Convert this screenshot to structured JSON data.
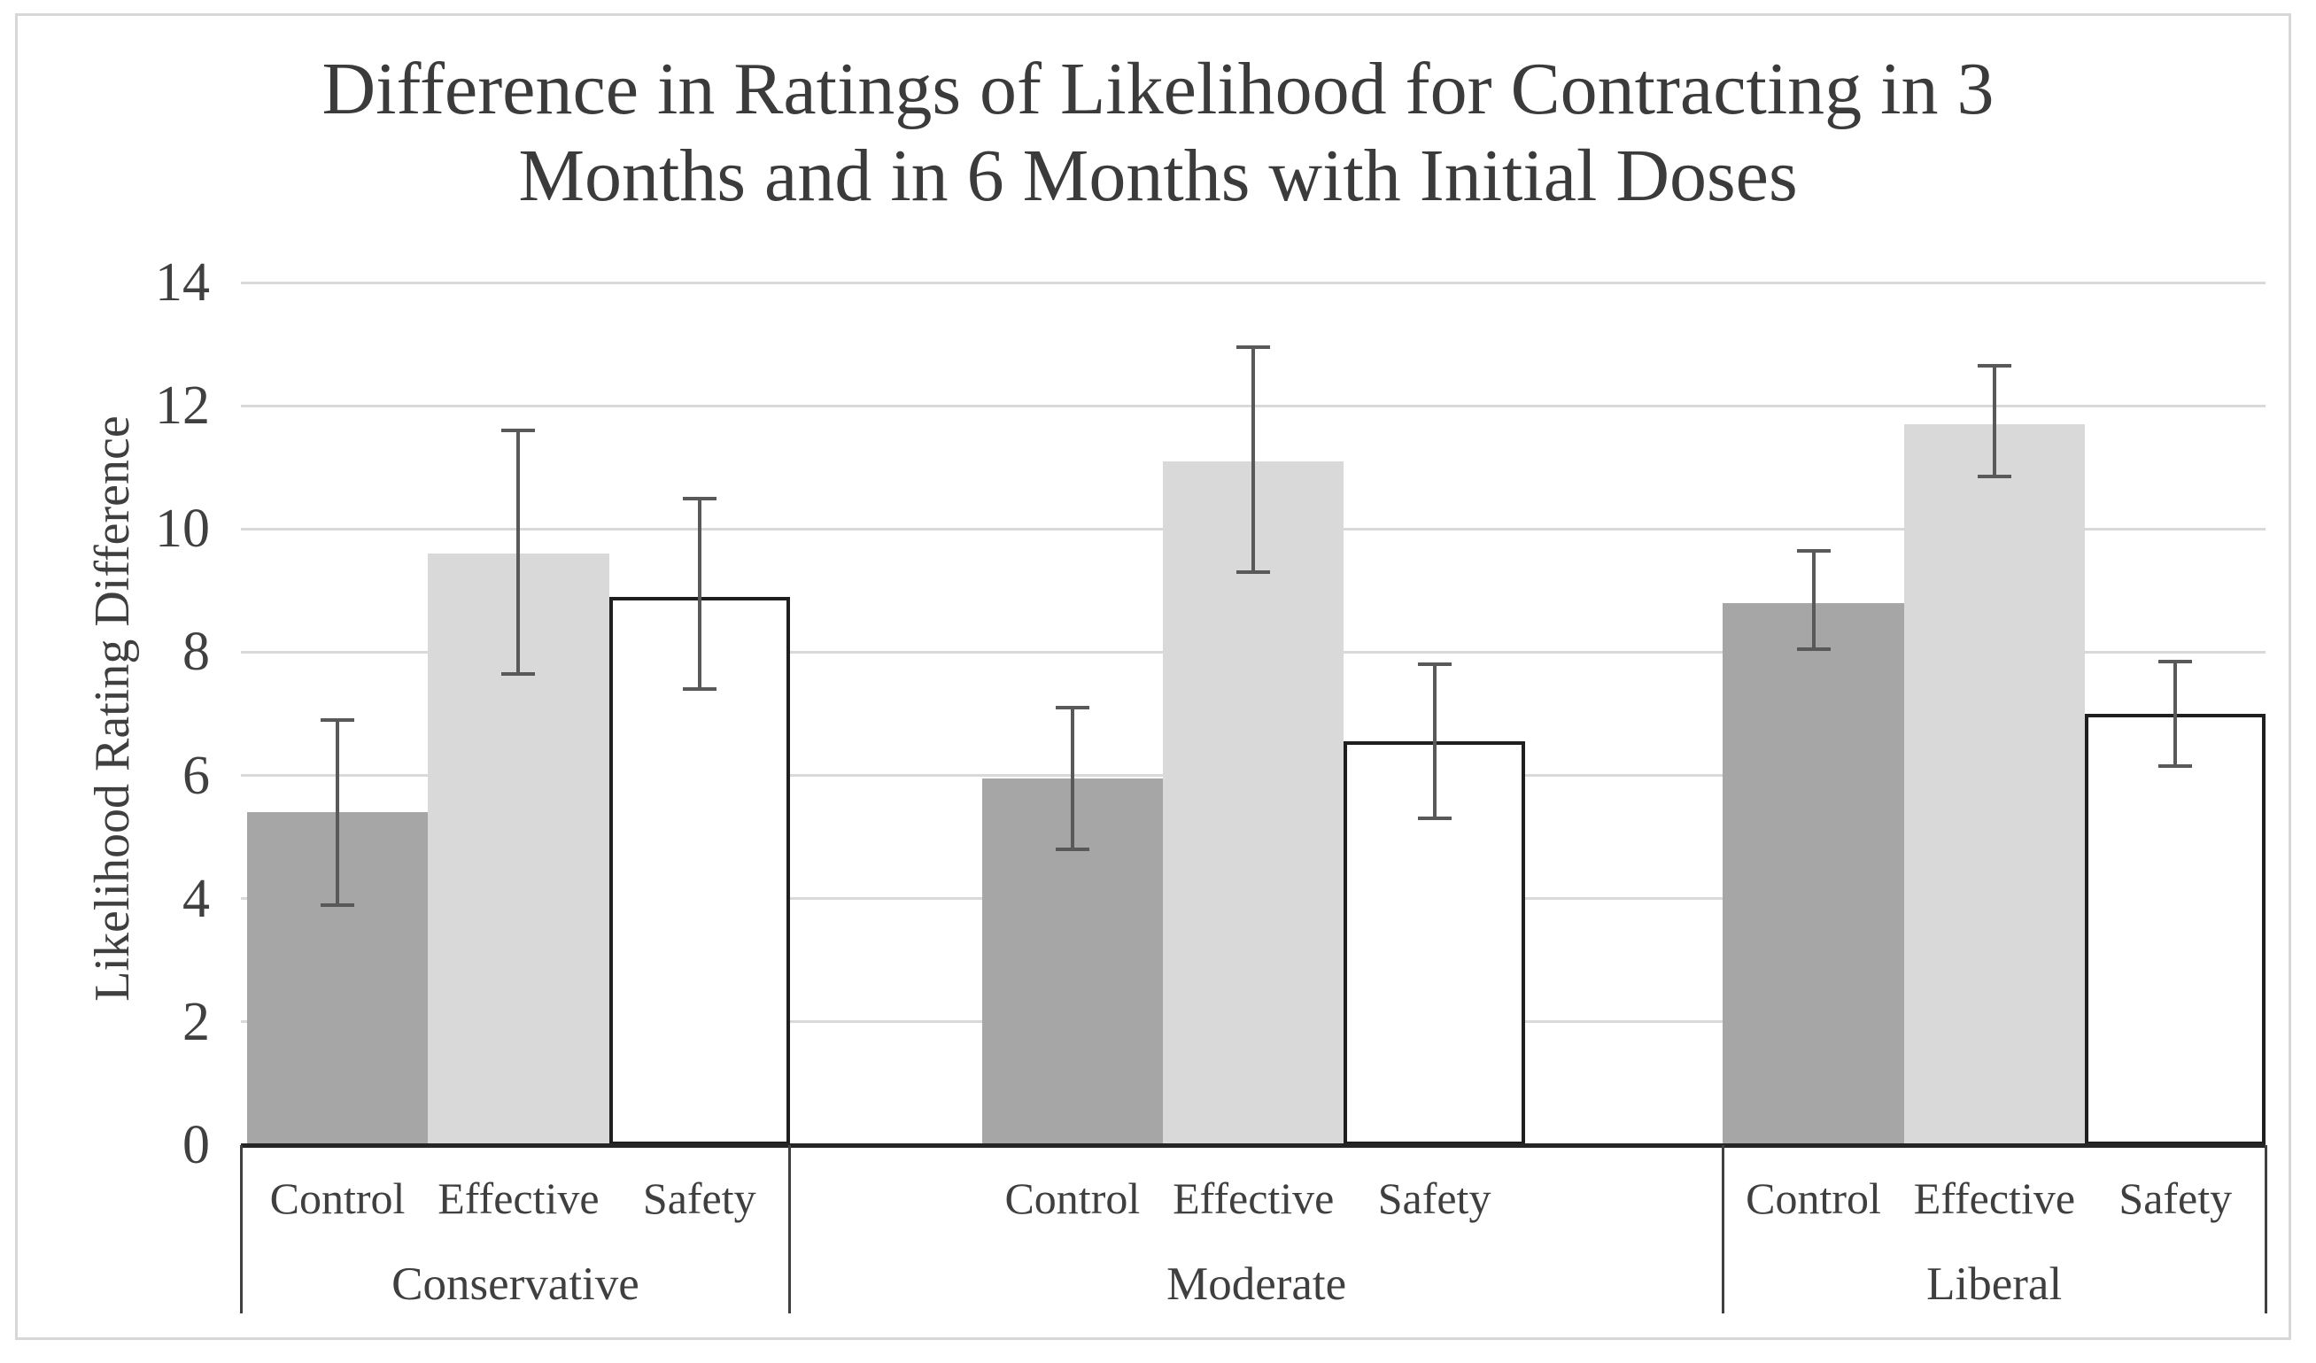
{
  "chart_data": {
    "type": "bar",
    "title": "Difference in Ratings of Likelihood for Contracting in 3 Months and in 6 Months with Initial Doses",
    "title_lines": [
      "Difference in Ratings of Likelihood for Contracting in 3",
      "Months and in 6 Months with Initial Doses"
    ],
    "ylabel": "Likelihood Rating Difference",
    "xlabel": "",
    "ylim": [
      0,
      14
    ],
    "yticks": [
      0,
      2,
      4,
      6,
      8,
      10,
      12,
      14
    ],
    "grid": true,
    "legend_position": "none",
    "error_bars": true,
    "categories": [
      "Control",
      "Effective",
      "Safety"
    ],
    "groups": [
      {
        "label": "Conservative",
        "bars": [
          {
            "category": "Control",
            "value": 5.4,
            "error_low": 3.9,
            "error_high": 6.9
          },
          {
            "category": "Effective",
            "value": 9.6,
            "error_low": 7.65,
            "error_high": 11.6
          },
          {
            "category": "Safety",
            "value": 8.9,
            "error_low": 7.4,
            "error_high": 10.5
          }
        ]
      },
      {
        "label": "Moderate",
        "bars": [
          {
            "category": "Control",
            "value": 5.95,
            "error_low": 4.8,
            "error_high": 7.1
          },
          {
            "category": "Effective",
            "value": 11.1,
            "error_low": 9.3,
            "error_high": 12.95
          },
          {
            "category": "Safety",
            "value": 6.55,
            "error_low": 5.3,
            "error_high": 7.8
          }
        ]
      },
      {
        "label": "Liberal",
        "bars": [
          {
            "category": "Control",
            "value": 8.8,
            "error_low": 8.05,
            "error_high": 9.65
          },
          {
            "category": "Effective",
            "value": 11.7,
            "error_low": 10.85,
            "error_high": 12.65
          },
          {
            "category": "Safety",
            "value": 7.0,
            "error_low": 6.15,
            "error_high": 7.85
          }
        ]
      }
    ],
    "series_styles": [
      {
        "category": "Control",
        "fill": "#a6a6a6",
        "border": null
      },
      {
        "category": "Effective",
        "fill": "#d9d9d9",
        "border": null
      },
      {
        "category": "Safety",
        "fill": "#ffffff",
        "border": "#1f1f1f"
      }
    ]
  },
  "colors": {
    "gridline": "#d9d9d9",
    "axis_line": "#262626",
    "error_bar": "#595959",
    "divider": "#404040",
    "text": "#3f3f3f",
    "figure_border": "#d7d7d7",
    "background": "#ffffff"
  }
}
